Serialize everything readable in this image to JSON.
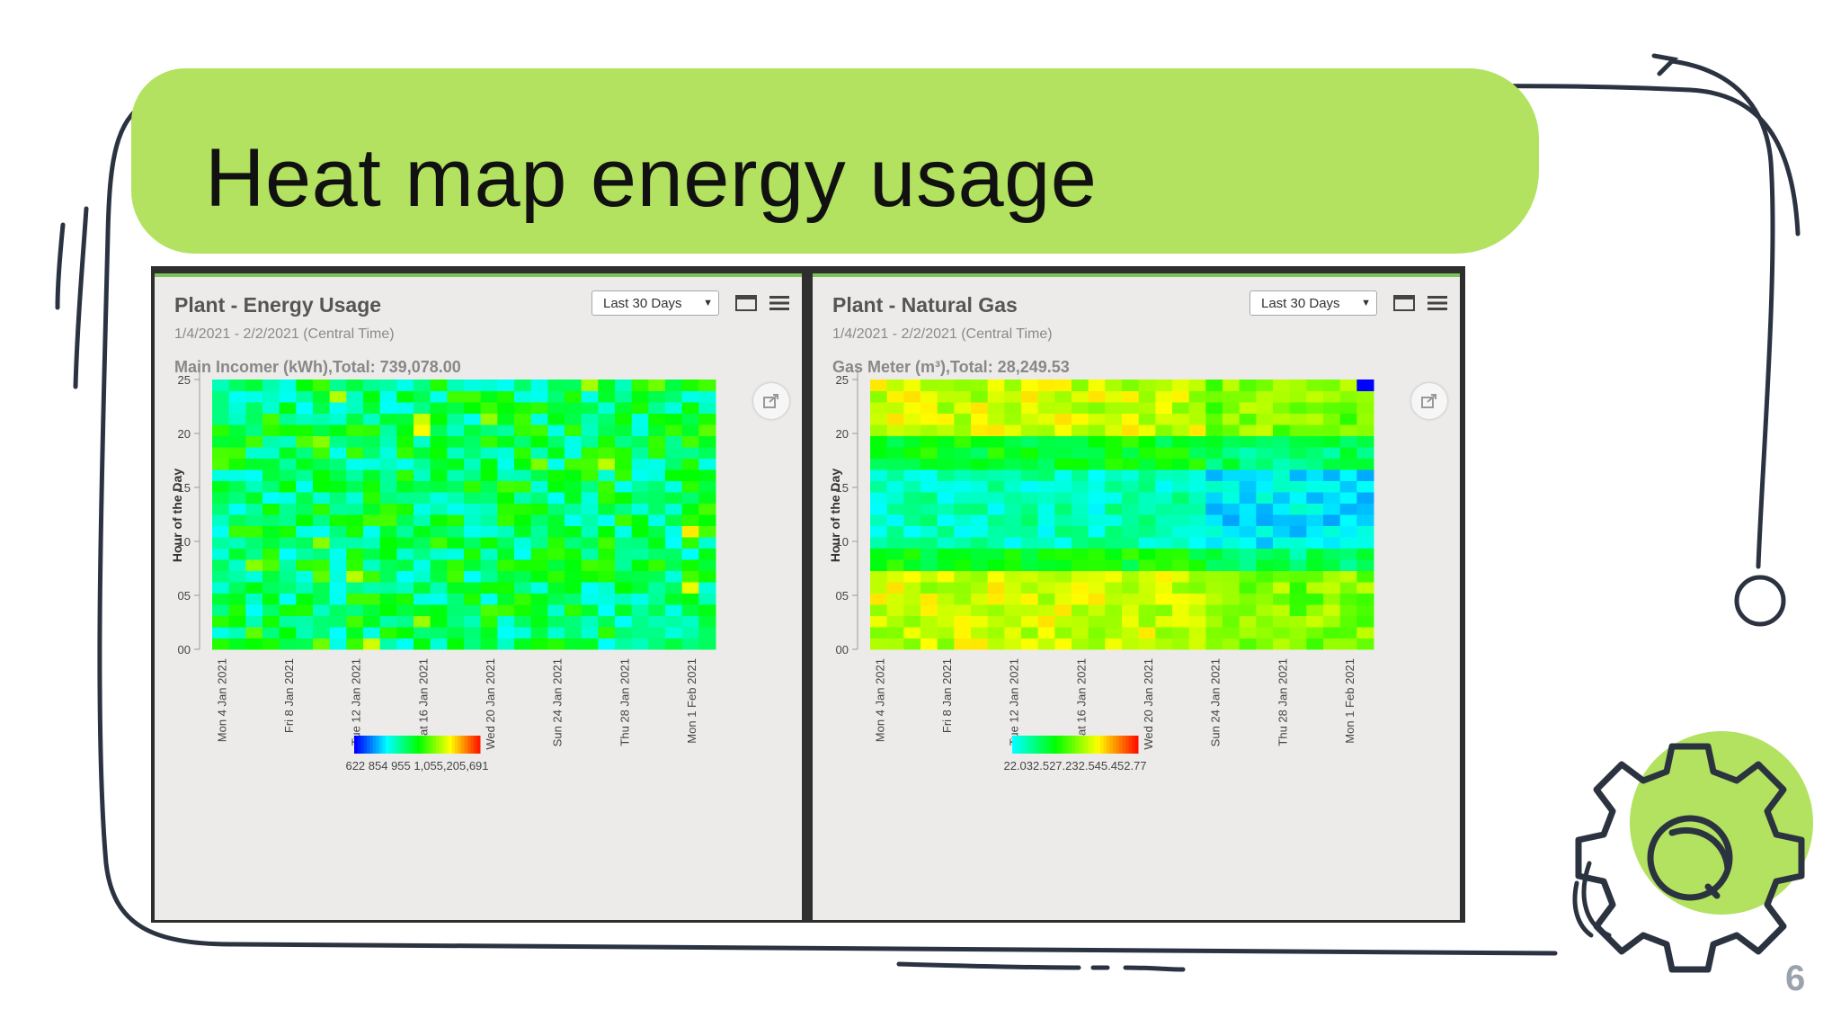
{
  "slide": {
    "title": "Heat map energy usage",
    "page_number": "6",
    "accent_color": "#b2e25f",
    "line_color": "#2b3240"
  },
  "panels": [
    {
      "title": "Plant - Energy Usage",
      "subtitle": "1/4/2021 - 2/2/2021 (Central Time)",
      "metric": "Main Incomer (kWh),Total: 739,078.00",
      "range_selected": "Last 30 Days",
      "icons": [
        "window-icon",
        "menu-icon",
        "export-icon"
      ],
      "palette": "energy"
    },
    {
      "title": "Plant - Natural Gas",
      "subtitle": "1/4/2021 - 2/2/2021 (Central Time)",
      "metric": "Gas Meter (m³),Total: 28,249.53",
      "range_selected": "Last 30 Days",
      "icons": [
        "window-icon",
        "menu-icon",
        "export-icon"
      ],
      "palette": "gas"
    }
  ],
  "chart_data": [
    {
      "type": "heatmap",
      "title": "Plant - Energy Usage",
      "ylabel": "Hour of the Day",
      "y_ticks": [
        "25",
        "20",
        "15",
        "10",
        "05",
        "00"
      ],
      "ylim": [
        0,
        25
      ],
      "x_ticks": [
        "Mon 4 Jan 2021",
        "Fri 8 Jan 2021",
        "Tue 12 Jan 2021",
        "Sat 16 Jan 2021",
        "Wed 20 Jan 2021",
        "Sun 24 Jan 2021",
        "Thu 28 Jan 2021",
        "Mon 1 Feb 2021"
      ],
      "days": 30,
      "hours": 24,
      "color_scale": [
        "#0000ff",
        "#00ffff",
        "#00ff00",
        "#ffff00",
        "#ff0000"
      ],
      "legend_labels": "622 854 955 1,055,205,691",
      "legend_placement": "bottom"
    },
    {
      "type": "heatmap",
      "title": "Plant - Natural Gas",
      "ylabel": "Hour of the Day",
      "y_ticks": [
        "25",
        "20",
        "15",
        "10",
        "05",
        "00"
      ],
      "ylim": [
        0,
        25
      ],
      "x_ticks": [
        "Mon 4 Jan 2021",
        "Fri 8 Jan 2021",
        "Tue 12 Jan 2021",
        "Sat 16 Jan 2021",
        "Wed 20 Jan 2021",
        "Sun 24 Jan 2021",
        "Thu 28 Jan 2021",
        "Mon 1 Feb 2021"
      ],
      "days": 30,
      "hours": 24,
      "color_scale": [
        "#0000ff",
        "#00ffff",
        "#00ff00",
        "#ffff00",
        "#ff0000"
      ],
      "legend_labels": "22.032.527.232.545.452.77",
      "legend_placement": "bottom"
    }
  ]
}
